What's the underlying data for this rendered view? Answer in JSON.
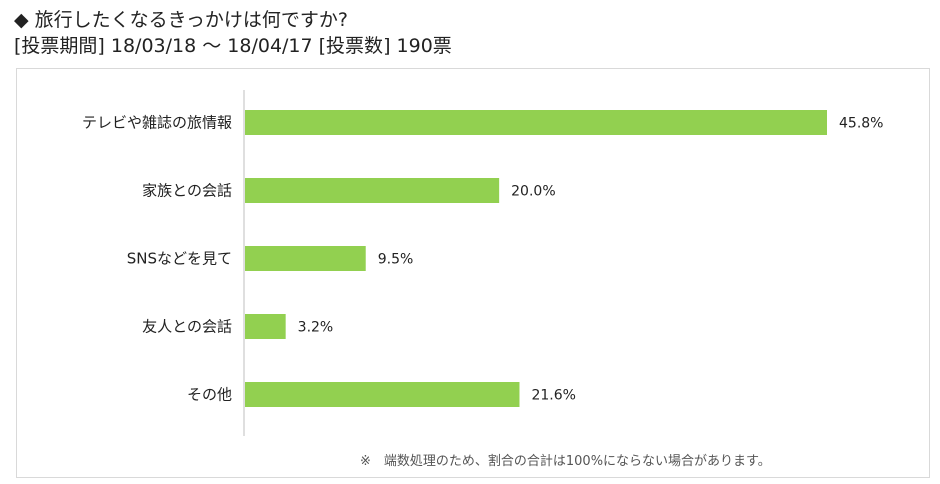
{
  "header": {
    "marker": "◆",
    "question": "旅行したくなるきっかけは何ですか?",
    "period": "[投票期間] 18/03/18 ～ 18/04/17 [投票数] 190票"
  },
  "footnote": "※　端数処理のため、割合の合計は100%にならない場合があります。",
  "colors": {
    "bar": "#92d050",
    "axis": "#bfbfbf"
  },
  "chart_data": {
    "type": "bar",
    "orientation": "horizontal",
    "categories": [
      "テレビや雑誌の旅情報",
      "家族との会話",
      "SNSなどを見て",
      "友人との会話",
      "その他"
    ],
    "values": [
      45.8,
      20.0,
      9.5,
      3.2,
      21.6
    ],
    "value_labels": [
      "45.8%",
      "20.0%",
      "9.5%",
      "3.2%",
      "21.6%"
    ],
    "unit": "%",
    "xlim": [
      0,
      50
    ],
    "grid": false,
    "legend": "none"
  }
}
